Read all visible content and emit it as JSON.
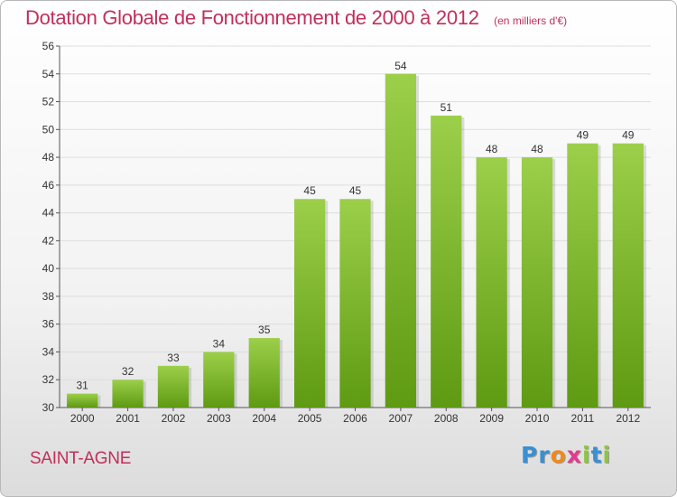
{
  "header": {
    "title": "Dotation Globale de Fonctionnement de 2000 à 2012",
    "subtitle": "(en milliers d'€)"
  },
  "footer": {
    "commune": "SAINT-AGNE",
    "brand_letters": [
      "P",
      "r",
      "o",
      "x",
      "i",
      "t",
      "i"
    ]
  },
  "colors": {
    "accent": "#c0305a",
    "bar_light": "#9ccf4a",
    "bar_dark": "#5e9a12",
    "grid": "#dddddd"
  },
  "chart_data": {
    "type": "bar",
    "title": "Dotation Globale de Fonctionnement de 2000 à 2012",
    "subtitle": "(en milliers d'€)",
    "xlabel": "",
    "ylabel": "",
    "categories": [
      "2000",
      "2001",
      "2002",
      "2003",
      "2004",
      "2005",
      "2006",
      "2007",
      "2008",
      "2009",
      "2010",
      "2011",
      "2012"
    ],
    "values": [
      31,
      32,
      33,
      34,
      35,
      45,
      45,
      54,
      51,
      48,
      48,
      49,
      49
    ],
    "ylim": [
      30,
      56
    ],
    "yticks": [
      30,
      32,
      34,
      36,
      38,
      40,
      42,
      44,
      46,
      48,
      50,
      52,
      54,
      56
    ],
    "grid": "horizontal",
    "data_labels": true
  }
}
